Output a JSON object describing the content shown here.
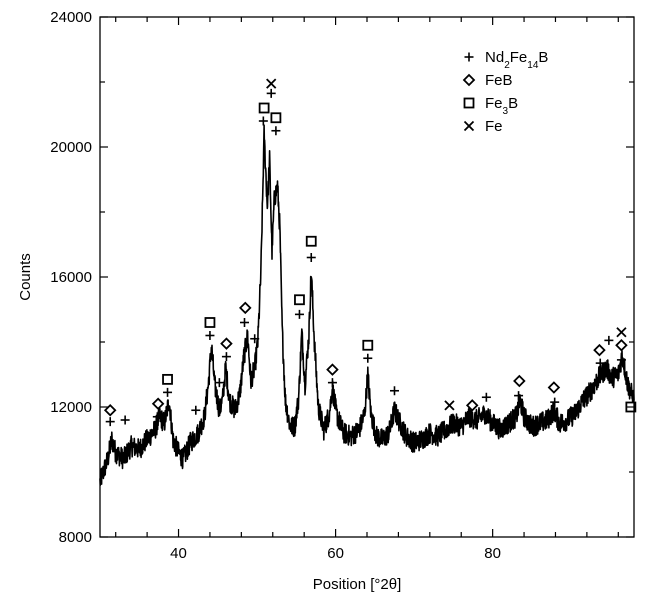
{
  "chart_data": {
    "type": "line",
    "xlabel": "Position [°2θ]",
    "ylabel": "Counts",
    "xlim": [
      30,
      98
    ],
    "ylim": [
      8000,
      24000
    ],
    "x_ticks": [
      40,
      60,
      80
    ],
    "y_ticks": [
      8000,
      12000,
      16000,
      20000,
      24000
    ],
    "grid": false,
    "legend_placement": "top-right",
    "legend": [
      {
        "marker": "plus",
        "base": "Nd",
        "sub1": "2",
        "mid": "Fe",
        "sub2": "14",
        "end": "B"
      },
      {
        "marker": "diamond",
        "base": "FeB"
      },
      {
        "marker": "square",
        "base": "Fe",
        "sub1": "3",
        "mid": "B"
      },
      {
        "marker": "cross",
        "base": "Fe"
      }
    ],
    "series_color": "#000000",
    "pattern": [
      [
        30,
        9700
      ],
      [
        31,
        10400
      ],
      [
        31.5,
        11000
      ],
      [
        32,
        10600
      ],
      [
        33,
        10400
      ],
      [
        34,
        10800
      ],
      [
        35,
        10700
      ],
      [
        36,
        11000
      ],
      [
        37,
        11300
      ],
      [
        37.6,
        11700
      ],
      [
        38.2,
        11500
      ],
      [
        38.8,
        12200
      ],
      [
        39.3,
        11000
      ],
      [
        40,
        10600
      ],
      [
        40.6,
        10400
      ],
      [
        41.5,
        10900
      ],
      [
        42.5,
        11200
      ],
      [
        43.3,
        11700
      ],
      [
        43.8,
        12700
      ],
      [
        44.2,
        13900
      ],
      [
        44.6,
        12700
      ],
      [
        45.2,
        11900
      ],
      [
        45.6,
        12200
      ],
      [
        46,
        13200
      ],
      [
        46.5,
        12200
      ],
      [
        47.2,
        11900
      ],
      [
        47.8,
        12400
      ],
      [
        48.3,
        13500
      ],
      [
        48.8,
        14200
      ],
      [
        49.2,
        12800
      ],
      [
        49.7,
        13200
      ],
      [
        50.1,
        14000
      ],
      [
        50.5,
        16200
      ],
      [
        50.9,
        20400
      ],
      [
        51.3,
        18200
      ],
      [
        51.6,
        19600
      ],
      [
        51.9,
        16800
      ],
      [
        52.2,
        18400
      ],
      [
        52.6,
        18800
      ],
      [
        52.9,
        17500
      ],
      [
        53.2,
        14400
      ],
      [
        53.6,
        12200
      ],
      [
        54.2,
        11400
      ],
      [
        54.8,
        11400
      ],
      [
        55.3,
        12300
      ],
      [
        55.7,
        14300
      ],
      [
        56.1,
        12700
      ],
      [
        56.6,
        14200
      ],
      [
        56.9,
        16200
      ],
      [
        57.3,
        14000
      ],
      [
        57.8,
        12000
      ],
      [
        58.5,
        11300
      ],
      [
        59.2,
        11800
      ],
      [
        59.6,
        12600
      ],
      [
        60.1,
        11800
      ],
      [
        61,
        11200
      ],
      [
        62,
        11100
      ],
      [
        63,
        11300
      ],
      [
        63.7,
        11800
      ],
      [
        64.1,
        13000
      ],
      [
        64.5,
        11800
      ],
      [
        65.2,
        11100
      ],
      [
        66,
        11000
      ],
      [
        66.8,
        11200
      ],
      [
        67.5,
        11900
      ],
      [
        68.2,
        11500
      ],
      [
        69,
        11100
      ],
      [
        70,
        10900
      ],
      [
        71,
        11000
      ],
      [
        72,
        11200
      ],
      [
        73,
        11100
      ],
      [
        74,
        11300
      ],
      [
        75,
        11500
      ],
      [
        76,
        11400
      ],
      [
        77,
        11700
      ],
      [
        78,
        11600
      ],
      [
        79,
        11800
      ],
      [
        80,
        11500
      ],
      [
        81,
        11300
      ],
      [
        82,
        11500
      ],
      [
        83,
        11700
      ],
      [
        83.5,
        12200
      ],
      [
        84,
        11700
      ],
      [
        85,
        11400
      ],
      [
        86,
        11500
      ],
      [
        87,
        11600
      ],
      [
        87.8,
        11900
      ],
      [
        88.5,
        11500
      ],
      [
        89.5,
        11600
      ],
      [
        90.5,
        11800
      ],
      [
        91.5,
        12200
      ],
      [
        92.5,
        12500
      ],
      [
        93.5,
        12900
      ],
      [
        94.5,
        13200
      ],
      [
        95.2,
        12900
      ],
      [
        96,
        13000
      ],
      [
        96.5,
        13600
      ],
      [
        97.2,
        12700
      ],
      [
        98,
        12200
      ]
    ],
    "markers": [
      {
        "type": "diamond",
        "x": 31.3,
        "y": 11900
      },
      {
        "type": "plus",
        "x": 31.3,
        "y": 11550
      },
      {
        "type": "plus",
        "x": 33.2,
        "y": 11600
      },
      {
        "type": "diamond",
        "x": 37.4,
        "y": 12100
      },
      {
        "type": "plus",
        "x": 37.3,
        "y": 11700
      },
      {
        "type": "square",
        "x": 38.6,
        "y": 12850
      },
      {
        "type": "plus",
        "x": 38.6,
        "y": 12450
      },
      {
        "type": "plus",
        "x": 42.2,
        "y": 11900
      },
      {
        "type": "square",
        "x": 44,
        "y": 14600
      },
      {
        "type": "plus",
        "x": 44,
        "y": 14200
      },
      {
        "type": "plus",
        "x": 45.2,
        "y": 12750
      },
      {
        "type": "diamond",
        "x": 46.1,
        "y": 13950
      },
      {
        "type": "plus",
        "x": 46.1,
        "y": 13550
      },
      {
        "type": "diamond",
        "x": 48.5,
        "y": 15050
      },
      {
        "type": "plus",
        "x": 48.4,
        "y": 14600
      },
      {
        "type": "plus",
        "x": 49.7,
        "y": 14100
      },
      {
        "type": "square",
        "x": 50.9,
        "y": 21200
      },
      {
        "type": "plus",
        "x": 50.8,
        "y": 20800
      },
      {
        "type": "square",
        "x": 52.4,
        "y": 20900
      },
      {
        "type": "plus",
        "x": 52.4,
        "y": 20500
      },
      {
        "type": "cross",
        "x": 51.8,
        "y": 21950
      },
      {
        "type": "plus",
        "x": 51.8,
        "y": 21650
      },
      {
        "type": "square",
        "x": 55.4,
        "y": 15300
      },
      {
        "type": "plus",
        "x": 55.4,
        "y": 14850
      },
      {
        "type": "square",
        "x": 56.9,
        "y": 17100
      },
      {
        "type": "plus",
        "x": 56.9,
        "y": 16600
      },
      {
        "type": "diamond",
        "x": 59.6,
        "y": 13150
      },
      {
        "type": "plus",
        "x": 59.6,
        "y": 12750
      },
      {
        "type": "square",
        "x": 64.1,
        "y": 13900
      },
      {
        "type": "plus",
        "x": 64.1,
        "y": 13500
      },
      {
        "type": "plus",
        "x": 67.5,
        "y": 12500
      },
      {
        "type": "cross",
        "x": 74.5,
        "y": 12050
      },
      {
        "type": "diamond",
        "x": 77.4,
        "y": 12050
      },
      {
        "type": "plus",
        "x": 79.2,
        "y": 12300
      },
      {
        "type": "diamond",
        "x": 83.4,
        "y": 12800
      },
      {
        "type": "plus",
        "x": 83.3,
        "y": 12350
      },
      {
        "type": "diamond",
        "x": 87.8,
        "y": 12600
      },
      {
        "type": "plus",
        "x": 87.9,
        "y": 12150
      },
      {
        "type": "diamond",
        "x": 93.6,
        "y": 13750
      },
      {
        "type": "plus",
        "x": 93.7,
        "y": 13350
      },
      {
        "type": "plus",
        "x": 94.8,
        "y": 14050
      },
      {
        "type": "cross",
        "x": 96.4,
        "y": 14300
      },
      {
        "type": "diamond",
        "x": 96.4,
        "y": 13900
      },
      {
        "type": "plus",
        "x": 96.4,
        "y": 13450
      },
      {
        "type": "square",
        "x": 97.6,
        "y": 12000
      }
    ]
  }
}
